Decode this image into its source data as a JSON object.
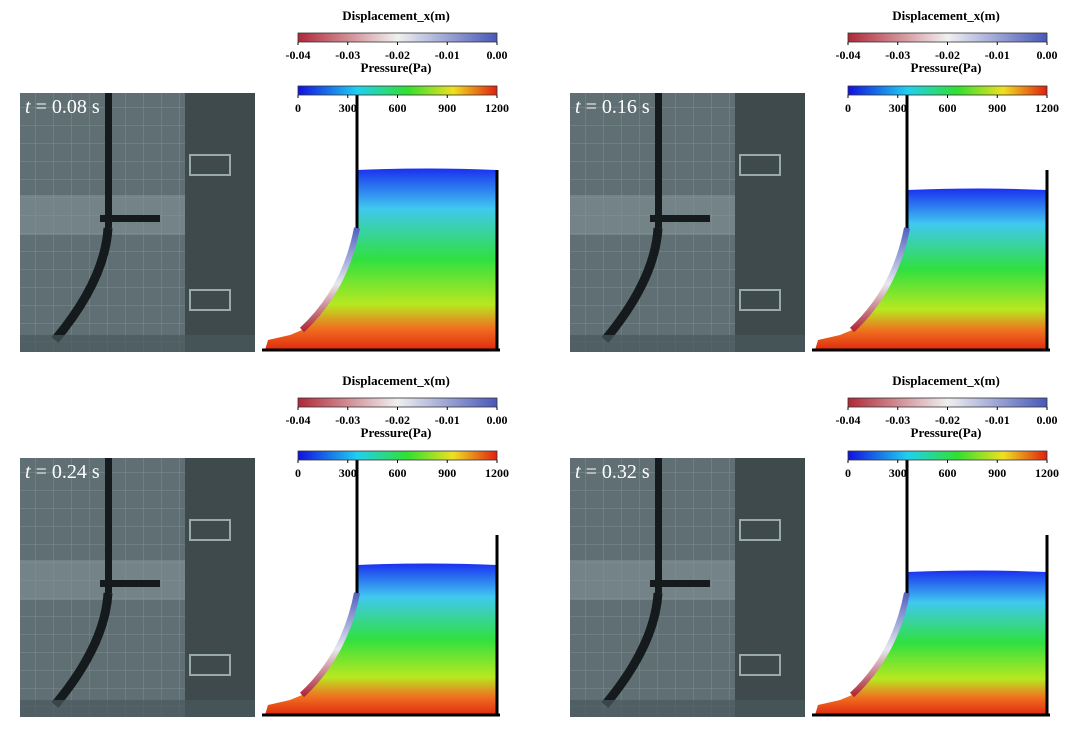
{
  "panels": [
    {
      "time_symbol": "t",
      "time_text": "= 0.08 s",
      "displacement": {
        "title": "Displacement_x(m)",
        "ticks": [
          -0.04,
          -0.03,
          -0.02,
          -0.01,
          {
            "value": 0,
            "label": "0.00"
          }
        ]
      },
      "pressure": {
        "title": "Pressure(Pa)",
        "ticks": [
          0,
          300,
          600,
          900,
          1200
        ]
      }
    },
    {
      "time_symbol": "t",
      "time_text": "= 0.16 s",
      "displacement": {
        "title": "Displacement_x(m)",
        "ticks": [
          -0.04,
          -0.03,
          -0.02,
          -0.01,
          {
            "value": 0,
            "label": "0.00"
          }
        ]
      },
      "pressure": {
        "title": "Pressure(Pa)",
        "ticks": [
          0,
          300,
          600,
          900,
          1200
        ]
      }
    },
    {
      "time_symbol": "t",
      "time_text": "= 0.24 s",
      "displacement": {
        "title": "Displacement_x(m)",
        "ticks": [
          -0.04,
          -0.03,
          -0.02,
          -0.01,
          {
            "value": 0,
            "label": "0.00"
          }
        ]
      },
      "pressure": {
        "title": "Pressure(Pa)",
        "ticks": [
          0,
          300,
          600,
          900,
          1200
        ]
      }
    },
    {
      "time_symbol": "t",
      "time_text": "= 0.32 s",
      "displacement": {
        "title": "Displacement_x(m)",
        "ticks": [
          -0.04,
          -0.03,
          -0.02,
          -0.01,
          {
            "value": 0,
            "label": "0.00"
          }
        ]
      },
      "pressure": {
        "title": "Pressure(Pa)",
        "ticks": [
          0,
          300,
          600,
          900,
          1200
        ]
      }
    }
  ]
}
